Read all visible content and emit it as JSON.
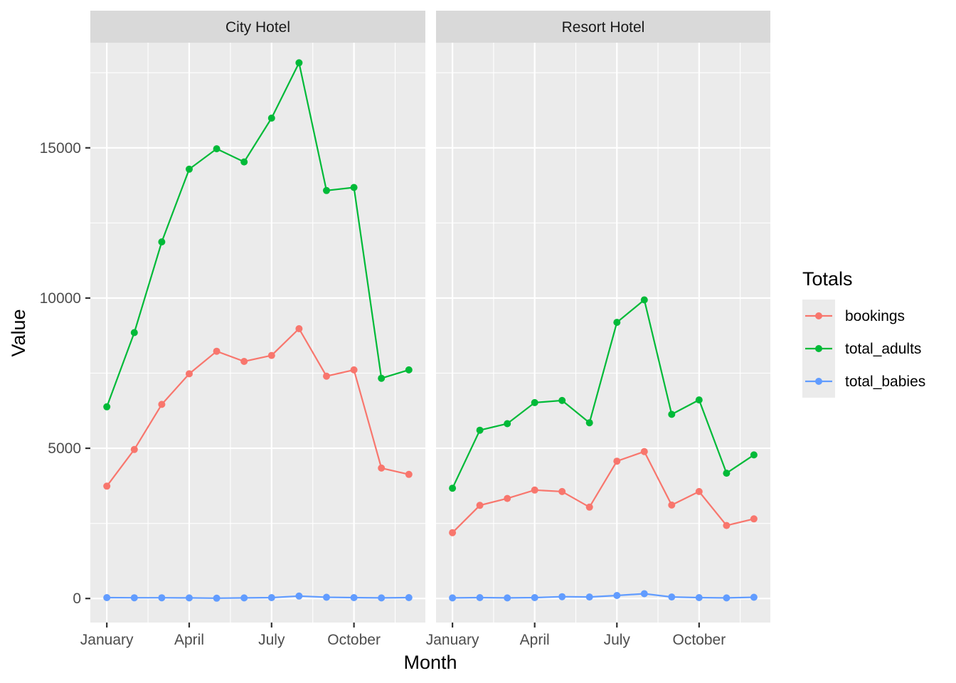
{
  "chart_data": {
    "type": "line",
    "xlabel": "Month",
    "ylabel": "Value",
    "ylim": [
      -800,
      18500
    ],
    "xlim": [
      0.4,
      12.6
    ],
    "yticks": [
      0,
      5000,
      10000,
      15000
    ],
    "xticks": [
      {
        "x": 1,
        "label": "January"
      },
      {
        "x": 4,
        "label": "April"
      },
      {
        "x": 7,
        "label": "July"
      },
      {
        "x": 10,
        "label": "October"
      }
    ],
    "grid": true,
    "legend": {
      "title": "Totals",
      "position": "right",
      "entries": [
        "bookings",
        "total_adults",
        "total_babies"
      ]
    },
    "colors": {
      "bookings": "#F8766D",
      "total_adults": "#00BA38",
      "total_babies": "#619CFF",
      "panel_bg": "#EBEBEB",
      "strip_bg": "#D9D9D9",
      "grid": "#FFFFFF"
    },
    "x": [
      1,
      2,
      3,
      4,
      5,
      6,
      7,
      8,
      9,
      10,
      11,
      12
    ],
    "facets": [
      {
        "label": "City Hotel",
        "series": [
          {
            "name": "bookings",
            "values": [
              3740,
              4960,
              6460,
              7480,
              8230,
              7890,
              8090,
              8980,
              7400,
              7610,
              4340,
              4130
            ]
          },
          {
            "name": "total_adults",
            "values": [
              6380,
              8850,
              11870,
              14290,
              14970,
              14530,
              15990,
              17830,
              13580,
              13680,
              7330,
              7610
            ]
          },
          {
            "name": "total_babies",
            "values": [
              30,
              25,
              25,
              20,
              10,
              20,
              30,
              80,
              40,
              30,
              20,
              30
            ]
          }
        ]
      },
      {
        "label": "Resort Hotel",
        "series": [
          {
            "name": "bookings",
            "values": [
              2190,
              3100,
              3330,
              3610,
              3560,
              3040,
              4570,
              4890,
              3110,
              3560,
              2430,
              2650
            ]
          },
          {
            "name": "total_adults",
            "values": [
              3670,
              5600,
              5820,
              6520,
              6590,
              5850,
              9190,
              9940,
              6130,
              6610,
              4170,
              4780
            ]
          },
          {
            "name": "total_babies",
            "values": [
              20,
              30,
              20,
              30,
              60,
              50,
              100,
              160,
              50,
              30,
              20,
              40
            ]
          }
        ]
      }
    ]
  }
}
